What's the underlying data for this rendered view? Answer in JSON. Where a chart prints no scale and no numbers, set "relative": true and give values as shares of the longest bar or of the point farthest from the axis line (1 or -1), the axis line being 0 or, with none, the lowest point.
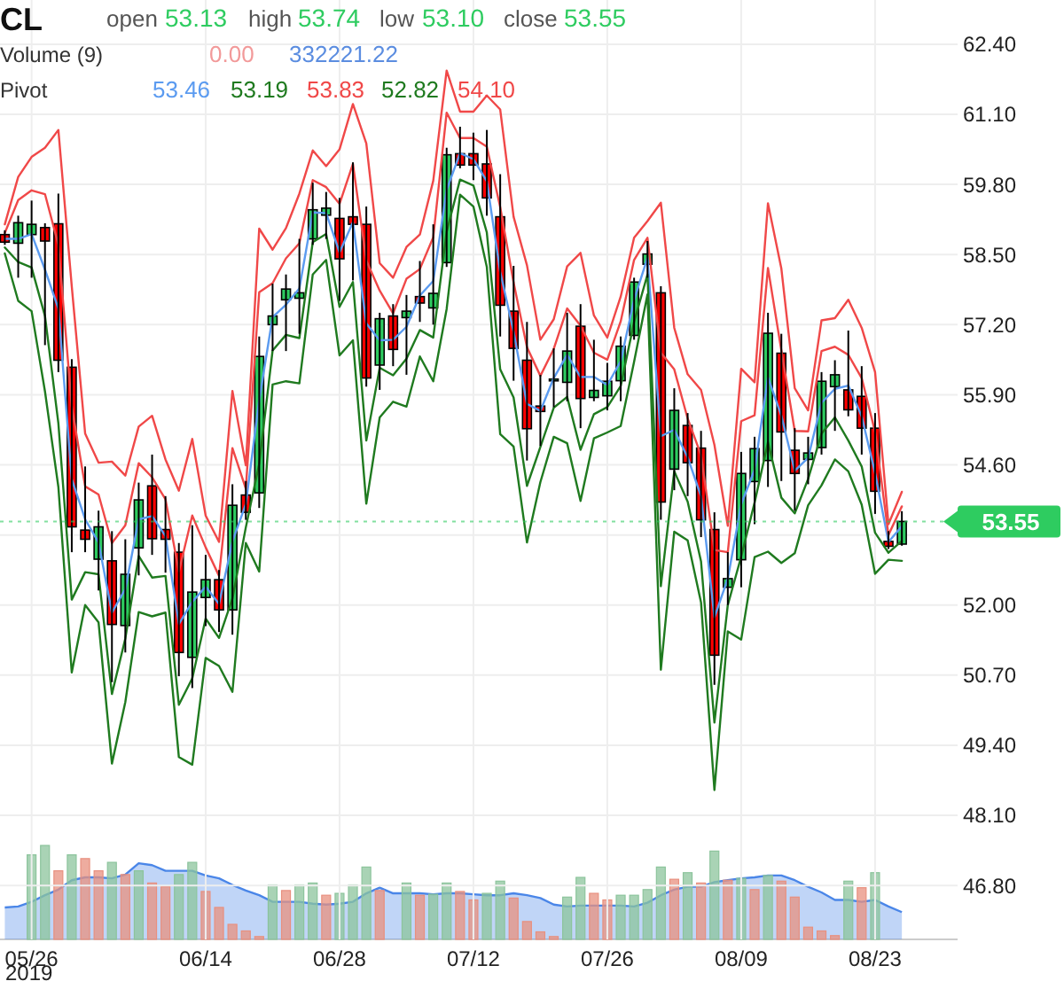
{
  "chart_data": [
    {
      "type": "candlestick",
      "title": "CL",
      "categories": [
        null,
        null,
        "05/26",
        null,
        null,
        null,
        null,
        null,
        null,
        null,
        null,
        null,
        null,
        null,
        null,
        "06/14",
        null,
        null,
        null,
        null,
        null,
        null,
        null,
        null,
        null,
        "06/28",
        null,
        null,
        null,
        null,
        null,
        null,
        null,
        null,
        null,
        "07/12",
        null,
        null,
        null,
        null,
        null,
        null,
        null,
        null,
        null,
        "07/26",
        null,
        null,
        null,
        null,
        null,
        null,
        null,
        null,
        null,
        "08/09",
        null,
        null,
        null,
        null,
        null,
        null,
        null,
        null,
        null,
        "08/23",
        null,
        null
      ],
      "ohlc": [
        [
          58.87,
          58.95,
          58.68,
          58.73
        ],
        [
          58.71,
          59.22,
          58.07,
          59.09
        ],
        [
          58.87,
          59.5,
          58.07,
          59.06
        ],
        [
          59.0,
          59.08,
          56.82,
          58.75
        ],
        [
          59.07,
          59.63,
          56.32,
          56.54
        ],
        [
          56.41,
          56.56,
          52.98,
          53.45
        ],
        [
          53.39,
          54.57,
          52.98,
          53.22
        ],
        [
          52.85,
          53.75,
          52.27,
          53.45
        ],
        [
          52.82,
          53.37,
          50.57,
          51.64
        ],
        [
          51.62,
          53.22,
          51.12,
          52.57
        ],
        [
          53.06,
          54.27,
          52.55,
          53.95
        ],
        [
          54.21,
          54.79,
          52.93,
          53.23
        ],
        [
          53.4,
          54.02,
          52.6,
          53.22
        ],
        [
          52.98,
          53.15,
          50.68,
          51.12
        ],
        [
          51.03,
          53.48,
          50.46,
          52.24
        ],
        [
          52.14,
          52.93,
          51.61,
          52.47
        ],
        [
          52.47,
          52.65,
          51.5,
          51.91
        ],
        [
          51.91,
          54.24,
          51.45,
          53.85
        ],
        [
          54.04,
          54.3,
          53.58,
          53.72
        ],
        [
          54.08,
          56.98,
          53.8,
          56.61
        ],
        [
          57.2,
          57.96,
          56.71,
          57.36
        ],
        [
          57.66,
          58.13,
          56.71,
          57.86
        ],
        [
          57.69,
          58.79,
          57.03,
          57.79
        ],
        [
          58.79,
          59.83,
          58.68,
          59.33
        ],
        [
          59.23,
          59.66,
          58.79,
          59.36
        ],
        [
          59.17,
          59.55,
          57.64,
          58.42
        ],
        [
          59.2,
          60.21,
          58.02,
          59.06
        ],
        [
          59.06,
          59.39,
          56.05,
          56.21
        ],
        [
          56.45,
          57.42,
          55.99,
          57.31
        ],
        [
          57.36,
          57.58,
          56.43,
          56.74
        ],
        [
          57.33,
          57.75,
          56.27,
          57.45
        ],
        [
          57.72,
          58.38,
          57.25,
          57.6
        ],
        [
          57.51,
          59.06,
          57.2,
          57.78
        ],
        [
          58.35,
          60.48,
          58.27,
          60.35
        ],
        [
          60.37,
          60.87,
          60.1,
          60.16
        ],
        [
          60.37,
          60.76,
          59.88,
          60.16
        ],
        [
          60.18,
          60.81,
          59.22,
          59.55
        ],
        [
          59.2,
          59.99,
          56.98,
          57.56
        ],
        [
          57.45,
          58.29,
          56.16,
          56.76
        ],
        [
          56.54,
          57.25,
          54.68,
          55.27
        ],
        [
          55.69,
          56.27,
          54.95,
          55.59
        ],
        [
          56.17,
          56.76,
          55.67,
          56.19
        ],
        [
          56.13,
          57.42,
          55.78,
          56.71
        ],
        [
          57.17,
          57.58,
          55.28,
          55.83
        ],
        [
          55.85,
          56.92,
          55.78,
          55.98
        ],
        [
          55.88,
          56.49,
          55.61,
          56.15
        ],
        [
          56.16,
          56.98,
          55.78,
          56.8
        ],
        [
          57.0,
          58.07,
          56.92,
          57.99
        ],
        [
          58.32,
          58.75,
          58.07,
          58.51
        ],
        [
          57.79,
          57.91,
          53.58,
          53.91
        ],
        [
          54.52,
          56.02,
          54.13,
          55.61
        ],
        [
          55.33,
          55.56,
          54.02,
          54.64
        ],
        [
          54.91,
          55.23,
          53.26,
          53.58
        ],
        [
          53.4,
          53.72,
          50.52,
          51.07
        ],
        [
          52.33,
          52.98,
          52.0,
          52.49
        ],
        [
          52.84,
          54.84,
          52.33,
          54.44
        ],
        [
          54.29,
          55.12,
          53.5,
          54.9
        ],
        [
          54.68,
          57.42,
          54.19,
          57.04
        ],
        [
          56.67,
          57.03,
          54.3,
          55.21
        ],
        [
          54.87,
          55.28,
          53.75,
          54.44
        ],
        [
          54.7,
          55.12,
          54.24,
          54.82
        ],
        [
          54.92,
          56.32,
          54.79,
          56.15
        ],
        [
          56.05,
          56.54,
          55.23,
          56.27
        ],
        [
          55.99,
          57.09,
          55.5,
          55.62
        ],
        [
          55.87,
          56.43,
          54.79,
          55.28
        ],
        [
          55.28,
          55.56,
          53.69,
          54.11
        ],
        [
          53.18,
          53.37,
          53.04,
          53.09
        ],
        [
          53.13,
          53.74,
          53.1,
          53.55
        ]
      ],
      "series": [
        {
          "type": "line",
          "color": "#5b9bf0",
          "values": [
            58.79,
            58.79,
            58.88,
            58.22,
            57.5,
            54.33,
            53.59,
            53.16,
            51.86,
            52.3,
            53.59,
            53.65,
            53.28,
            51.65,
            52.06,
            52.34,
            52.02,
            53.18,
            53.87,
            55.8,
            57.34,
            57.57,
            57.87,
            59.28,
            59.27,
            58.54,
            59.1,
            57.22,
            56.91,
            56.92,
            57.16,
            57.74,
            58.01,
            59.7,
            60.38,
            60.27,
            59.86,
            58.18,
            57.07,
            55.73,
            55.6,
            56.21,
            56.64,
            56.23,
            56.23,
            56.08,
            56.52,
            57.66,
            58.44,
            55.13,
            55.25,
            54.74,
            54.02,
            51.77,
            52.49,
            53.87,
            54.51,
            56.22,
            55.51,
            54.49,
            54.73,
            55.75,
            56.01,
            56.07,
            55.5,
            54.45,
            53.17,
            53.46
          ]
        },
        {
          "type": "line",
          "color": "#f04848",
          "values": [
            58.9,
            59.51,
            59.69,
            59.62,
            58.68,
            55.68,
            54.2,
            54.05,
            53.15,
            53.48,
            54.63,
            54.37,
            53.96,
            52.62,
            53.66,
            53.07,
            52.54,
            54.91,
            54.16,
            57.8,
            57.97,
            58.43,
            58.71,
            59.88,
            59.75,
            59.44,
            60.18,
            58.39,
            57.83,
            57.41,
            58.05,
            58.23,
            58.82,
            61.13,
            60.66,
            60.66,
            60.5,
            59.38,
            57.98,
            56.78,
            56.25,
            56.75,
            57.5,
            57.18,
            56.68,
            56.55,
            57.26,
            58.4,
            58.81,
            56.68,
            56.37,
            55.46,
            54.78,
            53.02,
            52.98,
            55.41,
            55.52,
            58.25,
            56.72,
            55.23,
            55.22,
            56.71,
            56.79,
            56.64,
            56.21,
            55.21,
            53.3,
            53.83
          ]
        },
        {
          "type": "line",
          "color": "#1f7a1f",
          "values": [
            58.63,
            58.36,
            58.26,
            57.36,
            55.37,
            52.1,
            52.61,
            52.57,
            50.35,
            51.38,
            52.91,
            52.51,
            52.54,
            50.15,
            50.64,
            51.75,
            51.39,
            52.12,
            53.44,
            54.62,
            56.72,
            57.01,
            56.95,
            58.73,
            58.88,
            57.53,
            57.99,
            55.05,
            56.4,
            56.26,
            56.57,
            57.1,
            56.96,
            58.92,
            59.89,
            59.78,
            58.91,
            56.37,
            55.85,
            54.21,
            54.93,
            55.66,
            55.86,
            54.88,
            55.54,
            55.67,
            56.06,
            57.25,
            58.13,
            52.35,
            54.48,
            53.92,
            52.81,
            49.82,
            52.0,
            52.9,
            53.9,
            55.02,
            53.99,
            53.7,
            54.34,
            55.18,
            55.48,
            55.05,
            54.57,
            53.34,
            52.97,
            53.19
          ]
        },
        {
          "type": "line",
          "color": "#f04848",
          "values": [
            59.06,
            59.94,
            60.31,
            60.48,
            60.81,
            57.91,
            55.18,
            54.64,
            54.66,
            54.4,
            55.31,
            55.51,
            54.7,
            54.12,
            55.08,
            53.66,
            53.17,
            55.97,
            54.59,
            58.98,
            58.59,
            58.99,
            59.63,
            60.43,
            60.14,
            60.45,
            61.29,
            60.56,
            58.34,
            58.07,
            58.64,
            58.87,
            59.87,
            61.91,
            61.15,
            61.15,
            61.45,
            61.19,
            59.2,
            58.3,
            56.92,
            57.3,
            58.28,
            58.53,
            57.37,
            56.96,
            57.72,
            58.81,
            59.12,
            59.46,
            57.14,
            56.28,
            55.99,
            54.97,
            53.47,
            56.38,
            56.13,
            59.45,
            58.24,
            56.02,
            55.61,
            57.28,
            57.32,
            57.66,
            57.14,
            56.32,
            53.5,
            54.1
          ]
        },
        {
          "type": "line",
          "color": "#1f7a1f",
          "values": [
            58.52,
            57.64,
            57.45,
            55.96,
            54.19,
            50.75,
            52.0,
            51.68,
            49.06,
            50.2,
            51.87,
            51.79,
            51.86,
            49.18,
            49.04,
            51.02,
            50.87,
            50.39,
            53.15,
            52.62,
            56.09,
            56.15,
            56.11,
            58.13,
            58.4,
            56.63,
            56.91,
            53.88,
            55.48,
            55.77,
            55.68,
            56.61,
            56.15,
            57.49,
            59.61,
            59.39,
            58.27,
            55.17,
            54.94,
            53.16,
            54.28,
            55.12,
            55.0,
            53.93,
            55.09,
            55.2,
            55.32,
            56.51,
            57.76,
            50.8,
            53.36,
            53.2,
            52.05,
            48.57,
            51.51,
            51.36,
            52.89,
            52.99,
            52.78,
            52.96,
            53.85,
            54.22,
            54.7,
            54.48,
            53.86,
            52.58,
            52.84,
            52.82
          ]
        }
      ],
      "ylim": [
        45.8,
        63.22
      ],
      "yticks": [
        {
          "value": 62.4,
          "label": "62.40"
        },
        {
          "value": 61.1,
          "label": "61.10"
        },
        {
          "value": 59.8,
          "label": "59.80"
        },
        {
          "value": 58.5,
          "label": "58.50"
        },
        {
          "value": 57.2,
          "label": "57.20"
        },
        {
          "value": 55.9,
          "label": "55.90"
        },
        {
          "value": 54.6,
          "label": "54.60"
        },
        {
          "value": 53.3,
          "label": null
        },
        {
          "value": 52,
          "label": "52.00"
        },
        {
          "value": 50.7,
          "label": "50.70"
        },
        {
          "value": 49.4,
          "label": "49.40"
        },
        {
          "value": 48.1,
          "label": "48.10"
        },
        {
          "value": 46.8,
          "label": "46.80"
        }
      ],
      "grid": true,
      "ref_lines": [
        {
          "axis": "y",
          "value": 53.55,
          "label": "53.55",
          "color": "#2ecc60"
        }
      ],
      "annotations": [
        "open",
        "53.13",
        "high",
        "53.74",
        "low",
        "53.10",
        "close",
        "53.55",
        "Volume (9)",
        "0.00",
        "332221.22",
        "Pivot",
        "53.46",
        "53.19",
        "53.83",
        "52.82",
        "54.10",
        "2019"
      ]
    },
    {
      "type": "bar",
      "relative": true,
      "categories": [
        null,
        null,
        null,
        null,
        null,
        null,
        null,
        null,
        null,
        null,
        null,
        null,
        null,
        null,
        null,
        null,
        null,
        null,
        null,
        null,
        null,
        null,
        null,
        null,
        null,
        null,
        null,
        null,
        null,
        null,
        null,
        null,
        null,
        null,
        null,
        null,
        null,
        null,
        null,
        null,
        null,
        null,
        null,
        null,
        null,
        null,
        null,
        null,
        null,
        null,
        null,
        null,
        null,
        null,
        null,
        null,
        null,
        null,
        null,
        null,
        null,
        null,
        null,
        null,
        null,
        null,
        null,
        null
      ],
      "series": [
        {
          "type": "area",
          "color": "#4a86e8",
          "values": [
            0.34,
            0.35,
            0.4,
            0.47,
            0.53,
            0.63,
            0.66,
            0.66,
            0.65,
            0.69,
            0.81,
            0.79,
            0.73,
            0.73,
            0.73,
            0.68,
            0.65,
            0.58,
            0.52,
            0.47,
            0.4,
            0.4,
            0.4,
            0.38,
            0.37,
            0.38,
            0.4,
            0.49,
            0.55,
            0.49,
            0.49,
            0.49,
            0.48,
            0.49,
            0.49,
            0.48,
            0.47,
            0.47,
            0.49,
            0.47,
            0.44,
            0.37,
            0.35,
            0.36,
            0.36,
            0.36,
            0.36,
            0.35,
            0.39,
            0.47,
            0.53,
            0.56,
            0.56,
            0.61,
            0.63,
            0.65,
            0.66,
            0.68,
            0.68,
            0.63,
            0.56,
            0.5,
            0.42,
            0.42,
            0.4,
            0.42,
            0.35,
            0.29
          ]
        },
        {
          "type": "bar",
          "colors": [
            null,
            null,
            "#8cc49c",
            "#8cc49c",
            "#e8907f",
            "#8cc49c",
            "#e8907f",
            "#e8907f",
            "#8cc49c",
            "#e8907f",
            "#8cc49c",
            "#e8907f",
            "#e8907f",
            "#8cc49c",
            "#8cc49c",
            "#e8907f",
            "#e8907f",
            "#e8907f",
            "#e8907f",
            "#e8907f",
            "#8cc49c",
            "#e8907f",
            "#8cc49c",
            "#8cc49c",
            "#e8907f",
            "#8cc49c",
            "#8cc49c",
            "#8cc49c",
            "#e8907f",
            null,
            "#8cc49c",
            "#e8907f",
            "#8cc49c",
            "#8cc49c",
            "#e8907f",
            "#e8907f",
            "#8cc49c",
            "#8cc49c",
            "#e8907f",
            "#e8907f",
            "#e8907f",
            "#e8907f",
            "#8cc49c",
            "#8cc49c",
            "#e8907f",
            "#e8907f",
            "#8cc49c",
            "#8cc49c",
            "#8cc49c",
            "#8cc49c",
            "#e8907f",
            "#8cc49c",
            "#e8907f",
            "#8cc49c",
            "#e8907f",
            "#8cc49c",
            "#e8907f",
            "#8cc49c",
            "#e8907f",
            "#e8907f",
            "#e8907f",
            "#e8907f",
            "#e8907f",
            "#8cc49c",
            "#e8907f",
            "#8cc49c",
            null,
            null
          ],
          "values": [
            null,
            null,
            0.9,
            1,
            0.73,
            0.9,
            0.86,
            0.73,
            0.82,
            0.69,
            0.73,
            0.6,
            0.56,
            0.69,
            0.82,
            0.51,
            0.34,
            0.16,
            0.09,
            0.03,
            0.58,
            0.52,
            0.58,
            0.6,
            0.47,
            0.49,
            0.58,
            0.77,
            0.52,
            null,
            0.6,
            0.47,
            0.48,
            0.6,
            0.51,
            0.42,
            0.49,
            0.62,
            0.44,
            0.19,
            0.08,
            0.03,
            0.45,
            0.66,
            0.49,
            0.42,
            0.47,
            0.47,
            0.53,
            0.77,
            0.64,
            0.71,
            0.6,
            0.94,
            0.63,
            0.65,
            0.53,
            0.68,
            0.62,
            0.45,
            0.13,
            0.09,
            0.04,
            0.62,
            0.55,
            0.71,
            null,
            null
          ]
        }
      ]
    }
  ]
}
